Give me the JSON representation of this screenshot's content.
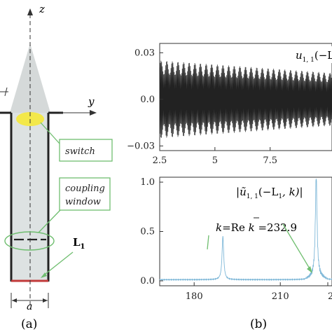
{
  "panel_a": {
    "caption": "(a)",
    "axis_z": "z",
    "axis_y": "y",
    "label_a": "a",
    "label_L": "L",
    "label_L_sub": "1",
    "callout_switch": "switch",
    "callout_coupling_1": "coupling",
    "callout_coupling_2": "window",
    "colors": {
      "beam": "#d5d9d9",
      "switch": "#f3e84a",
      "callout": "#6fbe6f",
      "bottom": "#c23a3a"
    }
  },
  "panel_b": {
    "caption": "(b)",
    "chart_data": [
      {
        "type": "line",
        "title": "u",
        "title_sub": "1, 1",
        "title_args": "(−L",
        "x_ticks": [
          "2.5",
          "5",
          "7.5"
        ],
        "y_ticks": [
          "0.03",
          "0.0",
          "−0.03"
        ],
        "xlim": [
          2.5,
          10.3
        ],
        "ylim": [
          -0.033,
          0.036
        ],
        "envelope": {
          "x": [
            2.5,
            10.3
          ],
          "amplitude": [
            0.025,
            0.017
          ]
        },
        "color": "#222222"
      },
      {
        "type": "line",
        "title_parts": [
          "|",
          "ũ",
          "1, 1",
          "(−L",
          "1",
          ", k)|"
        ],
        "annotation_parts": [
          "k",
          "=Re ",
          "k",
          " =232.9"
        ],
        "x_ticks": [
          "180",
          "210",
          "2"
        ],
        "y_ticks": [
          "1.0",
          "0.5",
          "0.0"
        ],
        "xlim": [
          168,
          228
        ],
        "ylim": [
          -0.05,
          1.05
        ],
        "peaks": [
          {
            "x": 190,
            "y": 0.44
          },
          {
            "x": 222.5,
            "y": 1.0
          }
        ],
        "color": "#7fb8d8"
      }
    ]
  }
}
